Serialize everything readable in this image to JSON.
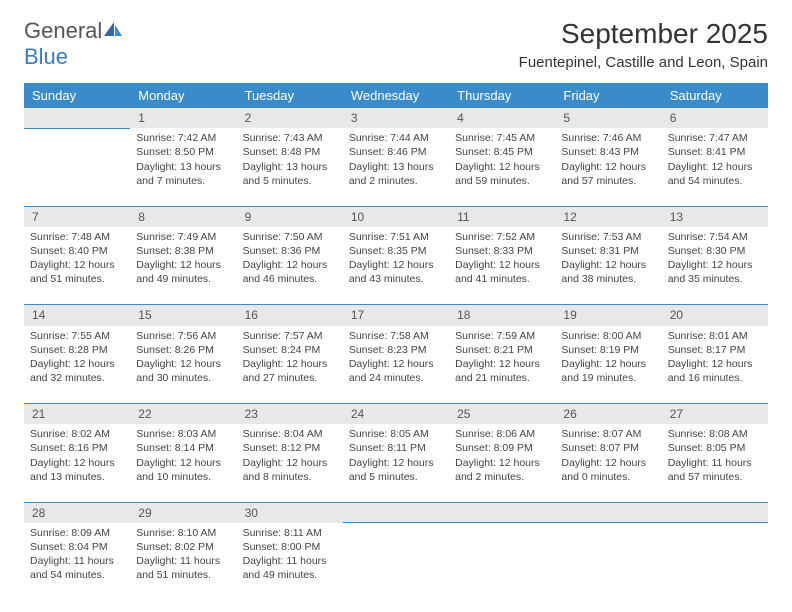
{
  "brand": {
    "line1": "General",
    "line2": "Blue"
  },
  "title": "September 2025",
  "location": "Fuentepinel, Castille and Leon, Spain",
  "colors": {
    "header_bg": "#3a8bc9",
    "header_text": "#ffffff",
    "daynum_bg": "#e8e8e8",
    "rule": "#3a8bc9",
    "brand_blue": "#3a7bbf",
    "text": "#444444"
  },
  "weekdays": [
    "Sunday",
    "Monday",
    "Tuesday",
    "Wednesday",
    "Thursday",
    "Friday",
    "Saturday"
  ],
  "weeks": [
    {
      "nums": [
        "",
        "1",
        "2",
        "3",
        "4",
        "5",
        "6"
      ],
      "cells": [
        null,
        {
          "sunrise": "Sunrise: 7:42 AM",
          "sunset": "Sunset: 8:50 PM",
          "day1": "Daylight: 13 hours",
          "day2": "and 7 minutes."
        },
        {
          "sunrise": "Sunrise: 7:43 AM",
          "sunset": "Sunset: 8:48 PM",
          "day1": "Daylight: 13 hours",
          "day2": "and 5 minutes."
        },
        {
          "sunrise": "Sunrise: 7:44 AM",
          "sunset": "Sunset: 8:46 PM",
          "day1": "Daylight: 13 hours",
          "day2": "and 2 minutes."
        },
        {
          "sunrise": "Sunrise: 7:45 AM",
          "sunset": "Sunset: 8:45 PM",
          "day1": "Daylight: 12 hours",
          "day2": "and 59 minutes."
        },
        {
          "sunrise": "Sunrise: 7:46 AM",
          "sunset": "Sunset: 8:43 PM",
          "day1": "Daylight: 12 hours",
          "day2": "and 57 minutes."
        },
        {
          "sunrise": "Sunrise: 7:47 AM",
          "sunset": "Sunset: 8:41 PM",
          "day1": "Daylight: 12 hours",
          "day2": "and 54 minutes."
        }
      ]
    },
    {
      "nums": [
        "7",
        "8",
        "9",
        "10",
        "11",
        "12",
        "13"
      ],
      "cells": [
        {
          "sunrise": "Sunrise: 7:48 AM",
          "sunset": "Sunset: 8:40 PM",
          "day1": "Daylight: 12 hours",
          "day2": "and 51 minutes."
        },
        {
          "sunrise": "Sunrise: 7:49 AM",
          "sunset": "Sunset: 8:38 PM",
          "day1": "Daylight: 12 hours",
          "day2": "and 49 minutes."
        },
        {
          "sunrise": "Sunrise: 7:50 AM",
          "sunset": "Sunset: 8:36 PM",
          "day1": "Daylight: 12 hours",
          "day2": "and 46 minutes."
        },
        {
          "sunrise": "Sunrise: 7:51 AM",
          "sunset": "Sunset: 8:35 PM",
          "day1": "Daylight: 12 hours",
          "day2": "and 43 minutes."
        },
        {
          "sunrise": "Sunrise: 7:52 AM",
          "sunset": "Sunset: 8:33 PM",
          "day1": "Daylight: 12 hours",
          "day2": "and 41 minutes."
        },
        {
          "sunrise": "Sunrise: 7:53 AM",
          "sunset": "Sunset: 8:31 PM",
          "day1": "Daylight: 12 hours",
          "day2": "and 38 minutes."
        },
        {
          "sunrise": "Sunrise: 7:54 AM",
          "sunset": "Sunset: 8:30 PM",
          "day1": "Daylight: 12 hours",
          "day2": "and 35 minutes."
        }
      ]
    },
    {
      "nums": [
        "14",
        "15",
        "16",
        "17",
        "18",
        "19",
        "20"
      ],
      "cells": [
        {
          "sunrise": "Sunrise: 7:55 AM",
          "sunset": "Sunset: 8:28 PM",
          "day1": "Daylight: 12 hours",
          "day2": "and 32 minutes."
        },
        {
          "sunrise": "Sunrise: 7:56 AM",
          "sunset": "Sunset: 8:26 PM",
          "day1": "Daylight: 12 hours",
          "day2": "and 30 minutes."
        },
        {
          "sunrise": "Sunrise: 7:57 AM",
          "sunset": "Sunset: 8:24 PM",
          "day1": "Daylight: 12 hours",
          "day2": "and 27 minutes."
        },
        {
          "sunrise": "Sunrise: 7:58 AM",
          "sunset": "Sunset: 8:23 PM",
          "day1": "Daylight: 12 hours",
          "day2": "and 24 minutes."
        },
        {
          "sunrise": "Sunrise: 7:59 AM",
          "sunset": "Sunset: 8:21 PM",
          "day1": "Daylight: 12 hours",
          "day2": "and 21 minutes."
        },
        {
          "sunrise": "Sunrise: 8:00 AM",
          "sunset": "Sunset: 8:19 PM",
          "day1": "Daylight: 12 hours",
          "day2": "and 19 minutes."
        },
        {
          "sunrise": "Sunrise: 8:01 AM",
          "sunset": "Sunset: 8:17 PM",
          "day1": "Daylight: 12 hours",
          "day2": "and 16 minutes."
        }
      ]
    },
    {
      "nums": [
        "21",
        "22",
        "23",
        "24",
        "25",
        "26",
        "27"
      ],
      "cells": [
        {
          "sunrise": "Sunrise: 8:02 AM",
          "sunset": "Sunset: 8:16 PM",
          "day1": "Daylight: 12 hours",
          "day2": "and 13 minutes."
        },
        {
          "sunrise": "Sunrise: 8:03 AM",
          "sunset": "Sunset: 8:14 PM",
          "day1": "Daylight: 12 hours",
          "day2": "and 10 minutes."
        },
        {
          "sunrise": "Sunrise: 8:04 AM",
          "sunset": "Sunset: 8:12 PM",
          "day1": "Daylight: 12 hours",
          "day2": "and 8 minutes."
        },
        {
          "sunrise": "Sunrise: 8:05 AM",
          "sunset": "Sunset: 8:11 PM",
          "day1": "Daylight: 12 hours",
          "day2": "and 5 minutes."
        },
        {
          "sunrise": "Sunrise: 8:06 AM",
          "sunset": "Sunset: 8:09 PM",
          "day1": "Daylight: 12 hours",
          "day2": "and 2 minutes."
        },
        {
          "sunrise": "Sunrise: 8:07 AM",
          "sunset": "Sunset: 8:07 PM",
          "day1": "Daylight: 12 hours",
          "day2": "and 0 minutes."
        },
        {
          "sunrise": "Sunrise: 8:08 AM",
          "sunset": "Sunset: 8:05 PM",
          "day1": "Daylight: 11 hours",
          "day2": "and 57 minutes."
        }
      ]
    },
    {
      "nums": [
        "28",
        "29",
        "30",
        "",
        "",
        "",
        ""
      ],
      "cells": [
        {
          "sunrise": "Sunrise: 8:09 AM",
          "sunset": "Sunset: 8:04 PM",
          "day1": "Daylight: 11 hours",
          "day2": "and 54 minutes."
        },
        {
          "sunrise": "Sunrise: 8:10 AM",
          "sunset": "Sunset: 8:02 PM",
          "day1": "Daylight: 11 hours",
          "day2": "and 51 minutes."
        },
        {
          "sunrise": "Sunrise: 8:11 AM",
          "sunset": "Sunset: 8:00 PM",
          "day1": "Daylight: 11 hours",
          "day2": "and 49 minutes."
        },
        null,
        null,
        null,
        null
      ]
    }
  ]
}
